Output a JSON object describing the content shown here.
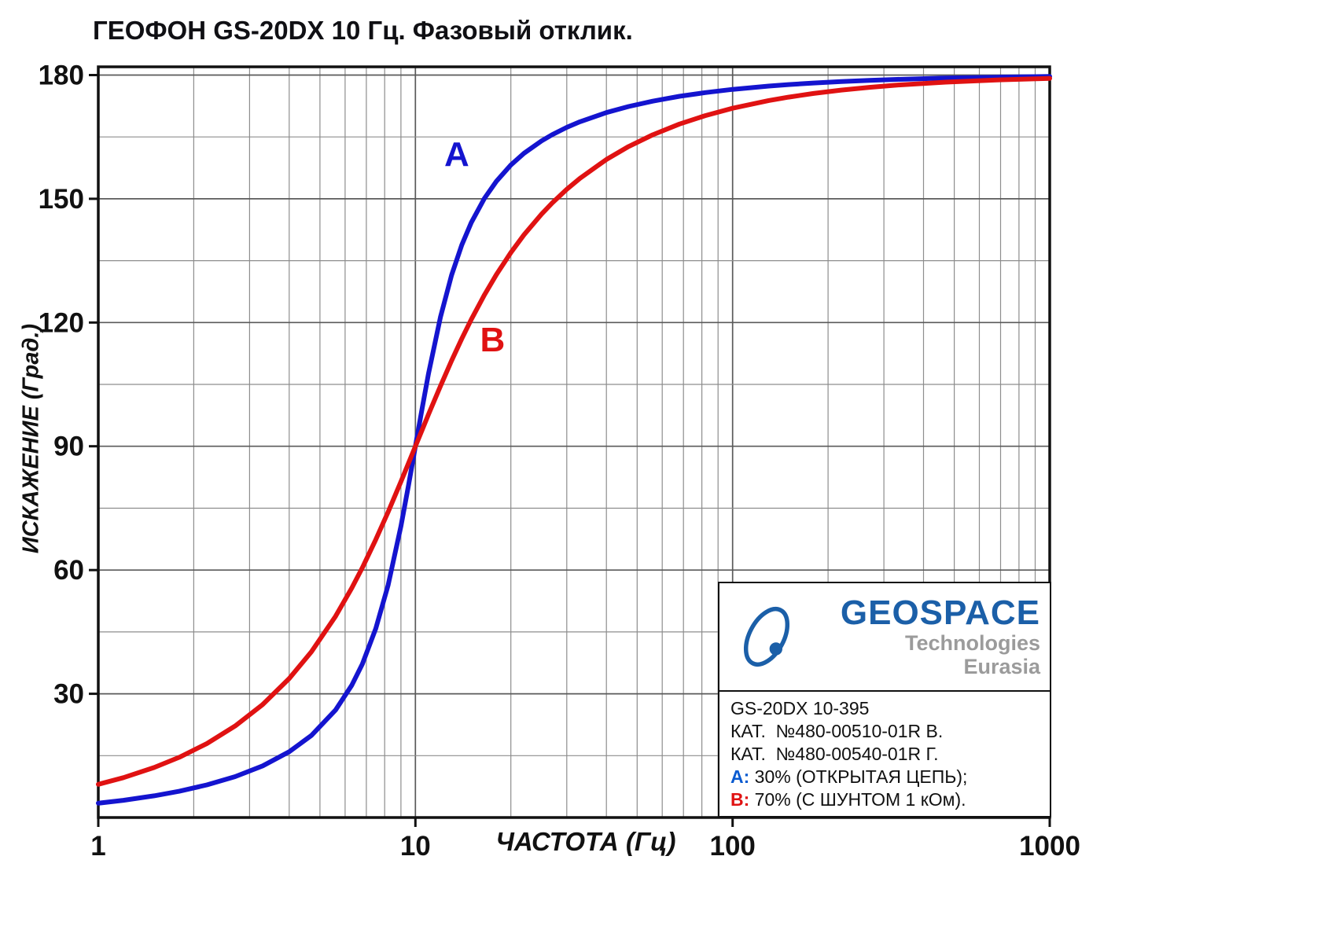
{
  "title": "ГЕОФОН GS-20DX 10 Гц. Фазовый отклик.",
  "chart_data": {
    "type": "line",
    "title": "ГЕОФОН GS-20DX 10 Гц. Фазовый отклик.",
    "xlabel": "ЧАСТОТА (Гц)",
    "ylabel": "ИСКАЖЕНИЕ (Град.)",
    "x_scale": "log",
    "xlim": [
      1,
      1000
    ],
    "ylim": [
      0,
      182
    ],
    "grid": true,
    "legend_position": "bottom-right",
    "x_tick_values": [
      1,
      10,
      100,
      1000
    ],
    "x_tick_labels": [
      "1",
      "10",
      "100",
      "1000"
    ],
    "y_tick_values": [
      30,
      60,
      90,
      120,
      150,
      180
    ],
    "y_tick_labels": [
      "30",
      "60",
      "90",
      "120",
      "150",
      "180"
    ],
    "y_minor_step": 15,
    "natural_frequency_hz": 10,
    "frequencies_hz": [
      1,
      1.2,
      1.5,
      1.8,
      2.2,
      2.7,
      3.3,
      4,
      4.7,
      5.6,
      6.3,
      6.8,
      7.5,
      8.2,
      9,
      9.5,
      10,
      10.5,
      11,
      12,
      13,
      14,
      15,
      16.5,
      18,
      20,
      22,
      25,
      27,
      30,
      33,
      40,
      47,
      56,
      68,
      82,
      100,
      130,
      150,
      180,
      220,
      270,
      330,
      470,
      680,
      1000
    ],
    "series": [
      {
        "name": "A",
        "description": "30% (ОТКРЫТАЯ ЦЕПЬ)",
        "color": "#1414cf",
        "phase_deg": [
          3.47,
          4.18,
          5.26,
          6.37,
          7.9,
          9.91,
          12.53,
          15.95,
          19.9,
          26.08,
          32.07,
          37.2,
          45.81,
          56.34,
          70.62,
          80.29,
          90,
          99.24,
          107.66,
          121.43,
          131.49,
          138.81,
          144.25,
          150.11,
          154.26,
          158.2,
          161.03,
          164.05,
          165.56,
          167.32,
          168.68,
          170.91,
          172.38,
          173.68,
          174.85,
          175.75,
          176.53,
          177.34,
          177.7,
          178.08,
          178.43,
          178.73,
          178.96,
          179.27,
          179.49,
          179.66
        ]
      },
      {
        "name": "B",
        "description": "70% (С ШУНТОМ 1 кОм)",
        "color": "#e01212",
        "phase_deg": [
          8.05,
          9.67,
          12.13,
          14.6,
          17.94,
          22.18,
          27.41,
          33.69,
          40.19,
          48.8,
          55.64,
          60.55,
          67.38,
          74.07,
          81.43,
          85.81,
          90,
          93.99,
          97.77,
          104.67,
          110.77,
          116.1,
          120.76,
          126.71,
          131.63,
          136.97,
          141.27,
          146.31,
          148.99,
          152.3,
          154.96,
          159.53,
          162.67,
          165.52,
          168.12,
          170.17,
          171.95,
          173.82,
          174.64,
          175.54,
          176.35,
          177.03,
          177.57,
          178.29,
          178.82,
          179.2
        ]
      }
    ],
    "annotations": [
      {
        "text": "A",
        "x": 13.5,
        "y": 158,
        "color": "#1414cf"
      },
      {
        "text": "B",
        "x": 17.5,
        "y": 113,
        "color": "#e01212"
      }
    ]
  },
  "legend": {
    "logo": {
      "name": "GEOSPACE",
      "line2": "Technologies",
      "line3": "Eurasia",
      "blue": "#1b5fa8",
      "gray": "#9b9b9b"
    },
    "lines": [
      {
        "prefix": "",
        "color": "",
        "text": "GS-20DX 10-395"
      },
      {
        "prefix": "",
        "color": "",
        "text": "КАТ.  №480-00510-01R В."
      },
      {
        "prefix": "",
        "color": "",
        "text": "КАТ.  №480-00540-01R Г."
      },
      {
        "prefix": "A:",
        "color": "#0a5bd0",
        "text": " 30% (ОТКРЫТАЯ ЦЕПЬ);"
      },
      {
        "prefix": "B:",
        "color": "#e01212",
        "text": " 70% (С ШУНТОМ 1 кОм)."
      }
    ]
  }
}
